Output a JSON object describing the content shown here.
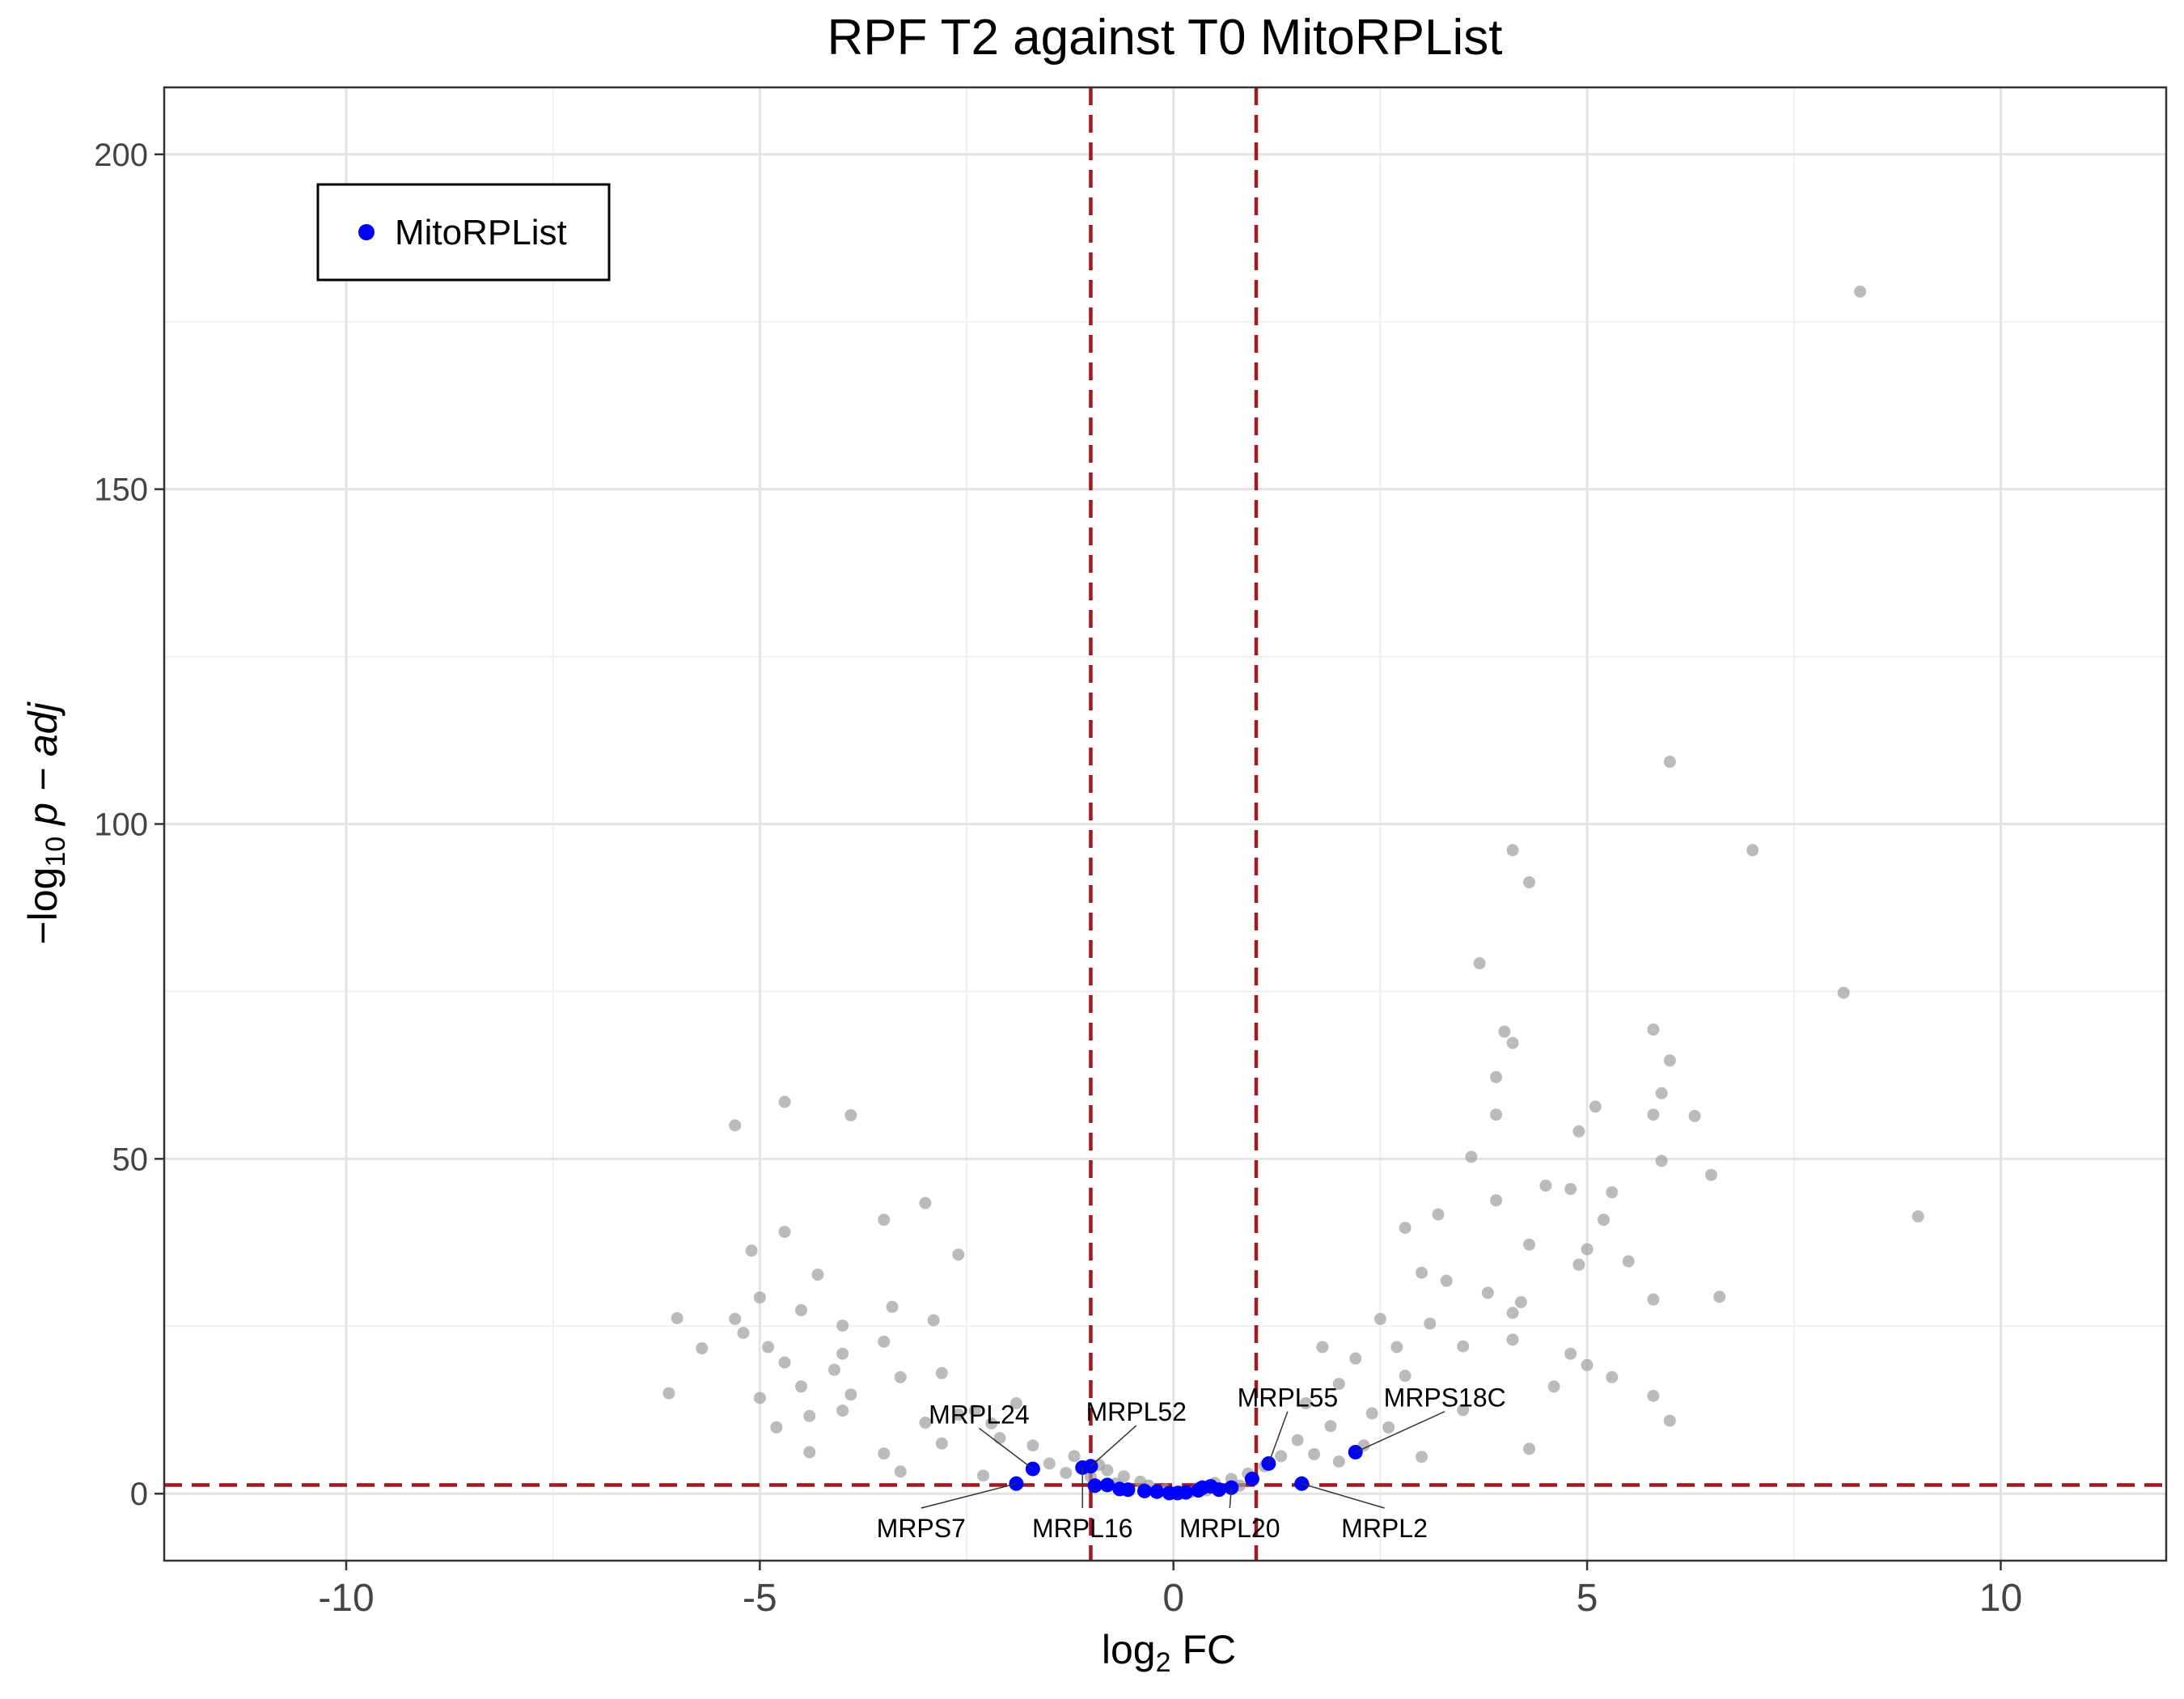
{
  "chart_data": {
    "type": "scatter",
    "title": "RPF T2 against T0 MitoRPList",
    "xlabel": {
      "prefix": "log",
      "sub": "2",
      "suffix": " FC"
    },
    "ylabel": {
      "prefix": "−log",
      "sub": "10",
      "suffix": " p − adj"
    },
    "xlim": [
      -12.2,
      12.0
    ],
    "ylim": [
      -10,
      210
    ],
    "xticks": [
      -10,
      -5,
      0,
      5,
      10
    ],
    "xtick_labels": [
      "-10",
      "-5",
      "0",
      "5",
      "10"
    ],
    "yticks": [
      0,
      50,
      100,
      150,
      200
    ],
    "ytick_labels": [
      "0",
      "50",
      "100",
      "150",
      "200"
    ],
    "grid": true,
    "thresholds": {
      "x": [
        -1,
        1
      ],
      "y": 1.3,
      "color": "#a01a1f"
    },
    "legend": {
      "position": "top-left",
      "entries": [
        {
          "label": "MitoRPList",
          "color": "#0000ff"
        }
      ]
    },
    "series": [
      {
        "name": "background",
        "color": "#9e9e9e",
        "points": [
          [
            8.3,
            179.5
          ],
          [
            6.0,
            109.3
          ],
          [
            4.1,
            96.1
          ],
          [
            7.0,
            96.1
          ],
          [
            4.3,
            91.3
          ],
          [
            3.7,
            79.2
          ],
          [
            8.1,
            74.8
          ],
          [
            9.0,
            41.4
          ],
          [
            4.0,
            69.0
          ],
          [
            4.1,
            67.3
          ],
          [
            5.8,
            69.3
          ],
          [
            6.0,
            64.7
          ],
          [
            3.9,
            62.2
          ],
          [
            5.9,
            59.8
          ],
          [
            5.1,
            57.8
          ],
          [
            5.8,
            56.6
          ],
          [
            6.3,
            56.4
          ],
          [
            3.9,
            56.6
          ],
          [
            4.9,
            54.1
          ],
          [
            3.6,
            50.3
          ],
          [
            5.9,
            49.7
          ],
          [
            6.5,
            47.6
          ],
          [
            4.5,
            46.0
          ],
          [
            4.8,
            45.5
          ],
          [
            5.3,
            45.0
          ],
          [
            3.9,
            43.8
          ],
          [
            3.2,
            41.7
          ],
          [
            5.2,
            40.9
          ],
          [
            2.8,
            39.7
          ],
          [
            4.3,
            37.2
          ],
          [
            5.0,
            36.5
          ],
          [
            4.9,
            34.2
          ],
          [
            5.5,
            34.7
          ],
          [
            6.6,
            29.4
          ],
          [
            5.8,
            29.0
          ],
          [
            2.5,
            26.1
          ],
          [
            3.0,
            33.0
          ],
          [
            3.3,
            31.8
          ],
          [
            3.8,
            30.0
          ],
          [
            4.1,
            27.0
          ],
          [
            4.2,
            28.6
          ],
          [
            4.1,
            23.0
          ],
          [
            4.8,
            20.9
          ],
          [
            5.0,
            19.2
          ],
          [
            5.3,
            17.4
          ],
          [
            4.6,
            16.0
          ],
          [
            5.8,
            14.6
          ],
          [
            6.0,
            10.9
          ],
          [
            4.3,
            6.7
          ],
          [
            3.5,
            22.0
          ],
          [
            3.1,
            25.4
          ],
          [
            2.7,
            21.9
          ],
          [
            2.2,
            20.2
          ],
          [
            1.8,
            21.9
          ],
          [
            2.0,
            16.4
          ],
          [
            1.6,
            13.5
          ],
          [
            2.8,
            17.6
          ],
          [
            3.5,
            12.5
          ],
          [
            2.4,
            12.0
          ],
          [
            1.5,
            8.0
          ],
          [
            -5.3,
            55.0
          ],
          [
            -4.7,
            58.5
          ],
          [
            -3.9,
            56.5
          ],
          [
            -3.0,
            43.4
          ],
          [
            -4.7,
            39.1
          ],
          [
            -3.5,
            40.9
          ],
          [
            -5.1,
            36.3
          ],
          [
            -2.6,
            35.7
          ],
          [
            -4.3,
            32.7
          ],
          [
            -5.0,
            29.3
          ],
          [
            -3.4,
            27.9
          ],
          [
            -4.5,
            27.4
          ],
          [
            -5.3,
            26.1
          ],
          [
            -6.0,
            26.2
          ],
          [
            -4.0,
            25.1
          ],
          [
            -2.9,
            25.9
          ],
          [
            -5.7,
            21.7
          ],
          [
            -5.2,
            24.0
          ],
          [
            -4.9,
            21.9
          ],
          [
            -4.7,
            19.6
          ],
          [
            -4.0,
            20.9
          ],
          [
            -3.5,
            22.7
          ],
          [
            -3.3,
            17.4
          ],
          [
            -2.8,
            18.0
          ],
          [
            -6.1,
            15.0
          ],
          [
            -4.1,
            18.5
          ],
          [
            -4.5,
            16.0
          ],
          [
            -5.0,
            14.3
          ],
          [
            -4.4,
            11.6
          ],
          [
            -3.9,
            14.8
          ],
          [
            -4.0,
            12.4
          ],
          [
            -4.8,
            9.9
          ],
          [
            -4.4,
            6.2
          ],
          [
            -3.0,
            10.6
          ],
          [
            -2.6,
            11.8
          ],
          [
            -2.4,
            12.4
          ],
          [
            -2.2,
            10.5
          ],
          [
            -1.9,
            13.5
          ],
          [
            -3.5,
            6.0
          ],
          [
            -2.8,
            7.5
          ],
          [
            -2.1,
            8.3
          ],
          [
            -1.7,
            7.2
          ],
          [
            -1.5,
            4.5
          ],
          [
            -1.2,
            5.6
          ],
          [
            -0.8,
            3.5
          ],
          [
            -0.6,
            2.6
          ],
          [
            -0.4,
            1.8
          ],
          [
            -0.3,
            1.2
          ],
          [
            0.3,
            0.9
          ],
          [
            0.5,
            1.6
          ],
          [
            0.7,
            2.2
          ],
          [
            0.9,
            3.0
          ],
          [
            1.1,
            4.1
          ],
          [
            1.3,
            5.6
          ],
          [
            -1.0,
            2.5
          ],
          [
            -0.9,
            4.3
          ],
          [
            -1.3,
            3.1
          ],
          [
            -2.3,
            2.7
          ],
          [
            -3.3,
            3.3
          ],
          [
            2.0,
            4.8
          ],
          [
            2.6,
            9.9
          ],
          [
            3.0,
            5.5
          ],
          [
            1.9,
            10.1
          ],
          [
            2.3,
            7.2
          ],
          [
            1.7,
            5.9
          ],
          [
            0.1,
            0.4
          ],
          [
            -0.1,
            0.6
          ],
          [
            0.2,
            0.2
          ],
          [
            -0.2,
            0.5
          ],
          [
            0.4,
            0.5
          ],
          [
            0.8,
            1.2
          ],
          [
            -0.7,
            1.5
          ]
        ]
      },
      {
        "name": "MitoRPList",
        "color": "#0000ff",
        "points": [
          [
            -1.9,
            1.5
          ],
          [
            -1.7,
            3.7
          ],
          [
            -1.1,
            3.9
          ],
          [
            -1.0,
            4.1
          ],
          [
            -0.95,
            1.2
          ],
          [
            -0.8,
            1.3
          ],
          [
            -0.65,
            0.7
          ],
          [
            -0.55,
            0.6
          ],
          [
            -0.35,
            0.4
          ],
          [
            -0.2,
            0.3
          ],
          [
            -0.05,
            0.1
          ],
          [
            0.05,
            0.1
          ],
          [
            0.15,
            0.2
          ],
          [
            0.3,
            0.5
          ],
          [
            0.35,
            0.9
          ],
          [
            0.45,
            1.1
          ],
          [
            0.55,
            0.6
          ],
          [
            0.7,
            0.9
          ],
          [
            0.95,
            2.2
          ],
          [
            1.15,
            4.5
          ],
          [
            1.55,
            1.5
          ],
          [
            2.2,
            6.2
          ]
        ]
      }
    ],
    "annotations": [
      {
        "label": "MRPL24",
        "point": [
          -1.7,
          3.7
        ],
        "text_at": [
          -2.35,
          10.5
        ]
      },
      {
        "label": "MRPL52",
        "point": [
          -1.0,
          4.1
        ],
        "text_at": [
          -0.45,
          10.9
        ]
      },
      {
        "label": "MRPL55",
        "point": [
          1.15,
          4.5
        ],
        "text_at": [
          1.38,
          13.0
        ]
      },
      {
        "label": "MRPS18C",
        "point": [
          2.2,
          6.2
        ],
        "text_at": [
          3.28,
          13.0
        ]
      },
      {
        "label": "MRPS7",
        "point": [
          -1.9,
          1.5
        ],
        "text_at": [
          -3.05,
          -6.5
        ]
      },
      {
        "label": "MRPL16",
        "point": [
          -1.1,
          3.9
        ],
        "text_at": [
          -1.1,
          -6.5
        ]
      },
      {
        "label": "MRPL20",
        "point": [
          0.7,
          0.9
        ],
        "text_at": [
          0.68,
          -6.5
        ]
      },
      {
        "label": "MRPL2",
        "point": [
          1.55,
          1.5
        ],
        "text_at": [
          2.55,
          -6.5
        ]
      }
    ]
  }
}
